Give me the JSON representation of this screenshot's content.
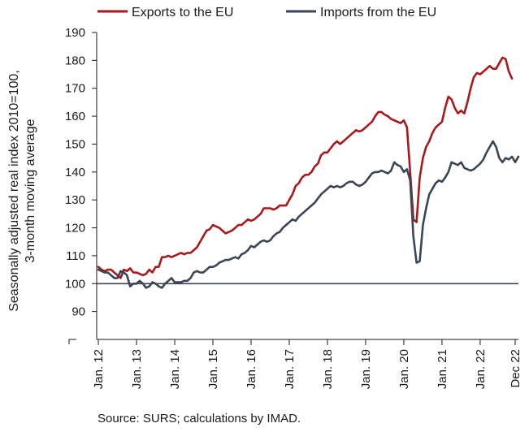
{
  "chart_data": {
    "type": "line",
    "ylabel_lines": [
      "Seasonally adjusted real index 2010=100,",
      "3-month moving average"
    ],
    "ylim": [
      80,
      190
    ],
    "yticks": [
      90,
      100,
      110,
      120,
      130,
      140,
      150,
      160,
      170,
      180,
      190
    ],
    "ytick_labels": [
      "90",
      "100",
      "110",
      "120",
      "130",
      "140",
      "150",
      "160",
      "170",
      "180",
      "190"
    ],
    "x_start": "2012-01",
    "x_end": "2022-12",
    "xticks": [
      "2012-01",
      "2013-01",
      "2014-01",
      "2015-01",
      "2016-01",
      "2017-01",
      "2018-01",
      "2019-01",
      "2020-01",
      "2021-01",
      "2022-01",
      "2022-12"
    ],
    "xtick_labels": [
      "Jan. 12",
      "Jan. 13",
      "Jan. 14",
      "Jan. 15",
      "Jan. 16",
      "Jan. 17",
      "Jan. 18",
      "Jan. 19",
      "Jan. 20",
      "Jan. 21",
      "Jan. 22",
      "Dec 22"
    ],
    "reference_line": 100,
    "legend_position": "top",
    "grid": false,
    "series": [
      {
        "name": "Exports to the EU",
        "color": "#a6191c",
        "values": [
          106,
          105,
          104.5,
          105,
          105,
          104,
          103,
          102,
          105,
          104.5,
          105.5,
          104,
          104,
          103.5,
          103,
          103.5,
          105,
          104,
          106,
          106,
          109.5,
          109.5,
          110,
          109.5,
          110,
          110.5,
          111,
          110.5,
          111,
          111,
          112,
          113,
          115,
          117,
          119,
          119.5,
          121,
          120.5,
          120,
          119,
          118,
          118.5,
          119,
          120,
          121,
          121,
          122,
          123,
          122.5,
          123,
          124,
          125,
          127,
          127,
          127,
          126.5,
          127,
          128,
          128,
          128,
          130,
          132,
          135,
          136,
          138,
          139,
          139,
          140,
          142,
          143,
          146,
          147,
          147,
          148.5,
          150,
          151,
          150,
          151,
          152,
          153,
          154,
          155,
          154.5,
          155,
          156,
          157,
          158,
          160,
          161.5,
          161.5,
          160.5,
          160,
          159,
          158.5,
          158,
          157.5,
          158.5,
          156,
          140,
          123,
          122,
          138,
          145,
          149,
          151,
          154,
          156,
          157,
          158,
          163,
          167,
          166,
          163,
          161,
          162,
          161,
          165,
          170,
          174,
          175.5,
          175,
          176,
          177,
          178,
          177,
          177,
          179,
          181,
          180.5,
          176,
          173.5
        ]
      },
      {
        "name": "Imports from the EU",
        "color": "#3a4556",
        "values": [
          105,
          104.5,
          104,
          104,
          103,
          102,
          102,
          104.5,
          104,
          103,
          99,
          100,
          100,
          101,
          100,
          98.5,
          99,
          100.5,
          100,
          99,
          98.5,
          100,
          101,
          102,
          100.5,
          100.5,
          100.5,
          101,
          101,
          102,
          104,
          104.5,
          104,
          104,
          105,
          106,
          106,
          106.5,
          107.5,
          108,
          108.5,
          108.5,
          109,
          109.5,
          109,
          110.5,
          111,
          112,
          113.5,
          113,
          114,
          115,
          115.5,
          115,
          115.5,
          117,
          118,
          118.5,
          120,
          121,
          122,
          123,
          122.5,
          124,
          125,
          126,
          127,
          128,
          129,
          130.5,
          132,
          133,
          134,
          135,
          134.5,
          135,
          134.5,
          135,
          136,
          136.5,
          136.5,
          135.5,
          135,
          135.5,
          136.5,
          138,
          139.5,
          140,
          140,
          140.5,
          140,
          139.5,
          140.5,
          143.5,
          142.5,
          142,
          140,
          141,
          137,
          117,
          107.5,
          108,
          121,
          127,
          132,
          134,
          136,
          137,
          136.5,
          138,
          140,
          143.5,
          143,
          142.5,
          143.5,
          141.5,
          141,
          140.5,
          141,
          142,
          143,
          144.5,
          147,
          149,
          151,
          149,
          145,
          143.5,
          145,
          144.5,
          145.5,
          143.5,
          145.5
        ]
      }
    ]
  },
  "footer": {
    "source": "Source: SURS; calculations by IMAD."
  }
}
